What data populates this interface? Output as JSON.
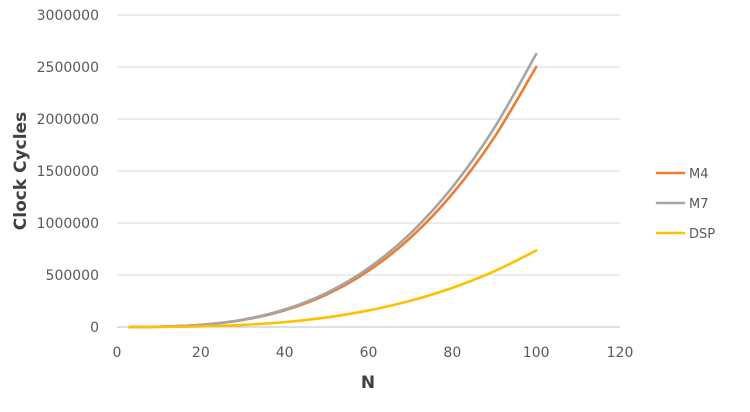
{
  "chart_data": {
    "type": "line",
    "title": "",
    "xlabel": "N",
    "ylabel": "Clock Cycles",
    "xlim": [
      0,
      120
    ],
    "ylim": [
      0,
      3000000
    ],
    "x_ticks": [
      0,
      20,
      40,
      60,
      80,
      100,
      120
    ],
    "y_ticks": [
      0,
      500000,
      1000000,
      1500000,
      2000000,
      2500000,
      3000000
    ],
    "grid": "horizontal",
    "legend_position": "right",
    "x": [
      3,
      10,
      20,
      30,
      40,
      50,
      60,
      70,
      80,
      90,
      100
    ],
    "series": [
      {
        "name": "M4",
        "color": "#ed7d31",
        "values": [
          70,
          2500,
          20000,
          67000,
          160000,
          312000,
          540000,
          858000,
          1280000,
          1823000,
          2500000
        ]
      },
      {
        "name": "M7",
        "color": "#a5a5a5",
        "values": [
          75,
          2600,
          21000,
          71000,
          168000,
          328000,
          567000,
          900000,
          1344000,
          1914000,
          2625000
        ]
      },
      {
        "name": "DSP",
        "color": "#ffc000",
        "values": [
          20,
          750,
          6000,
          20000,
          47000,
          92000,
          159000,
          252000,
          376000,
          535000,
          735000
        ]
      }
    ]
  }
}
